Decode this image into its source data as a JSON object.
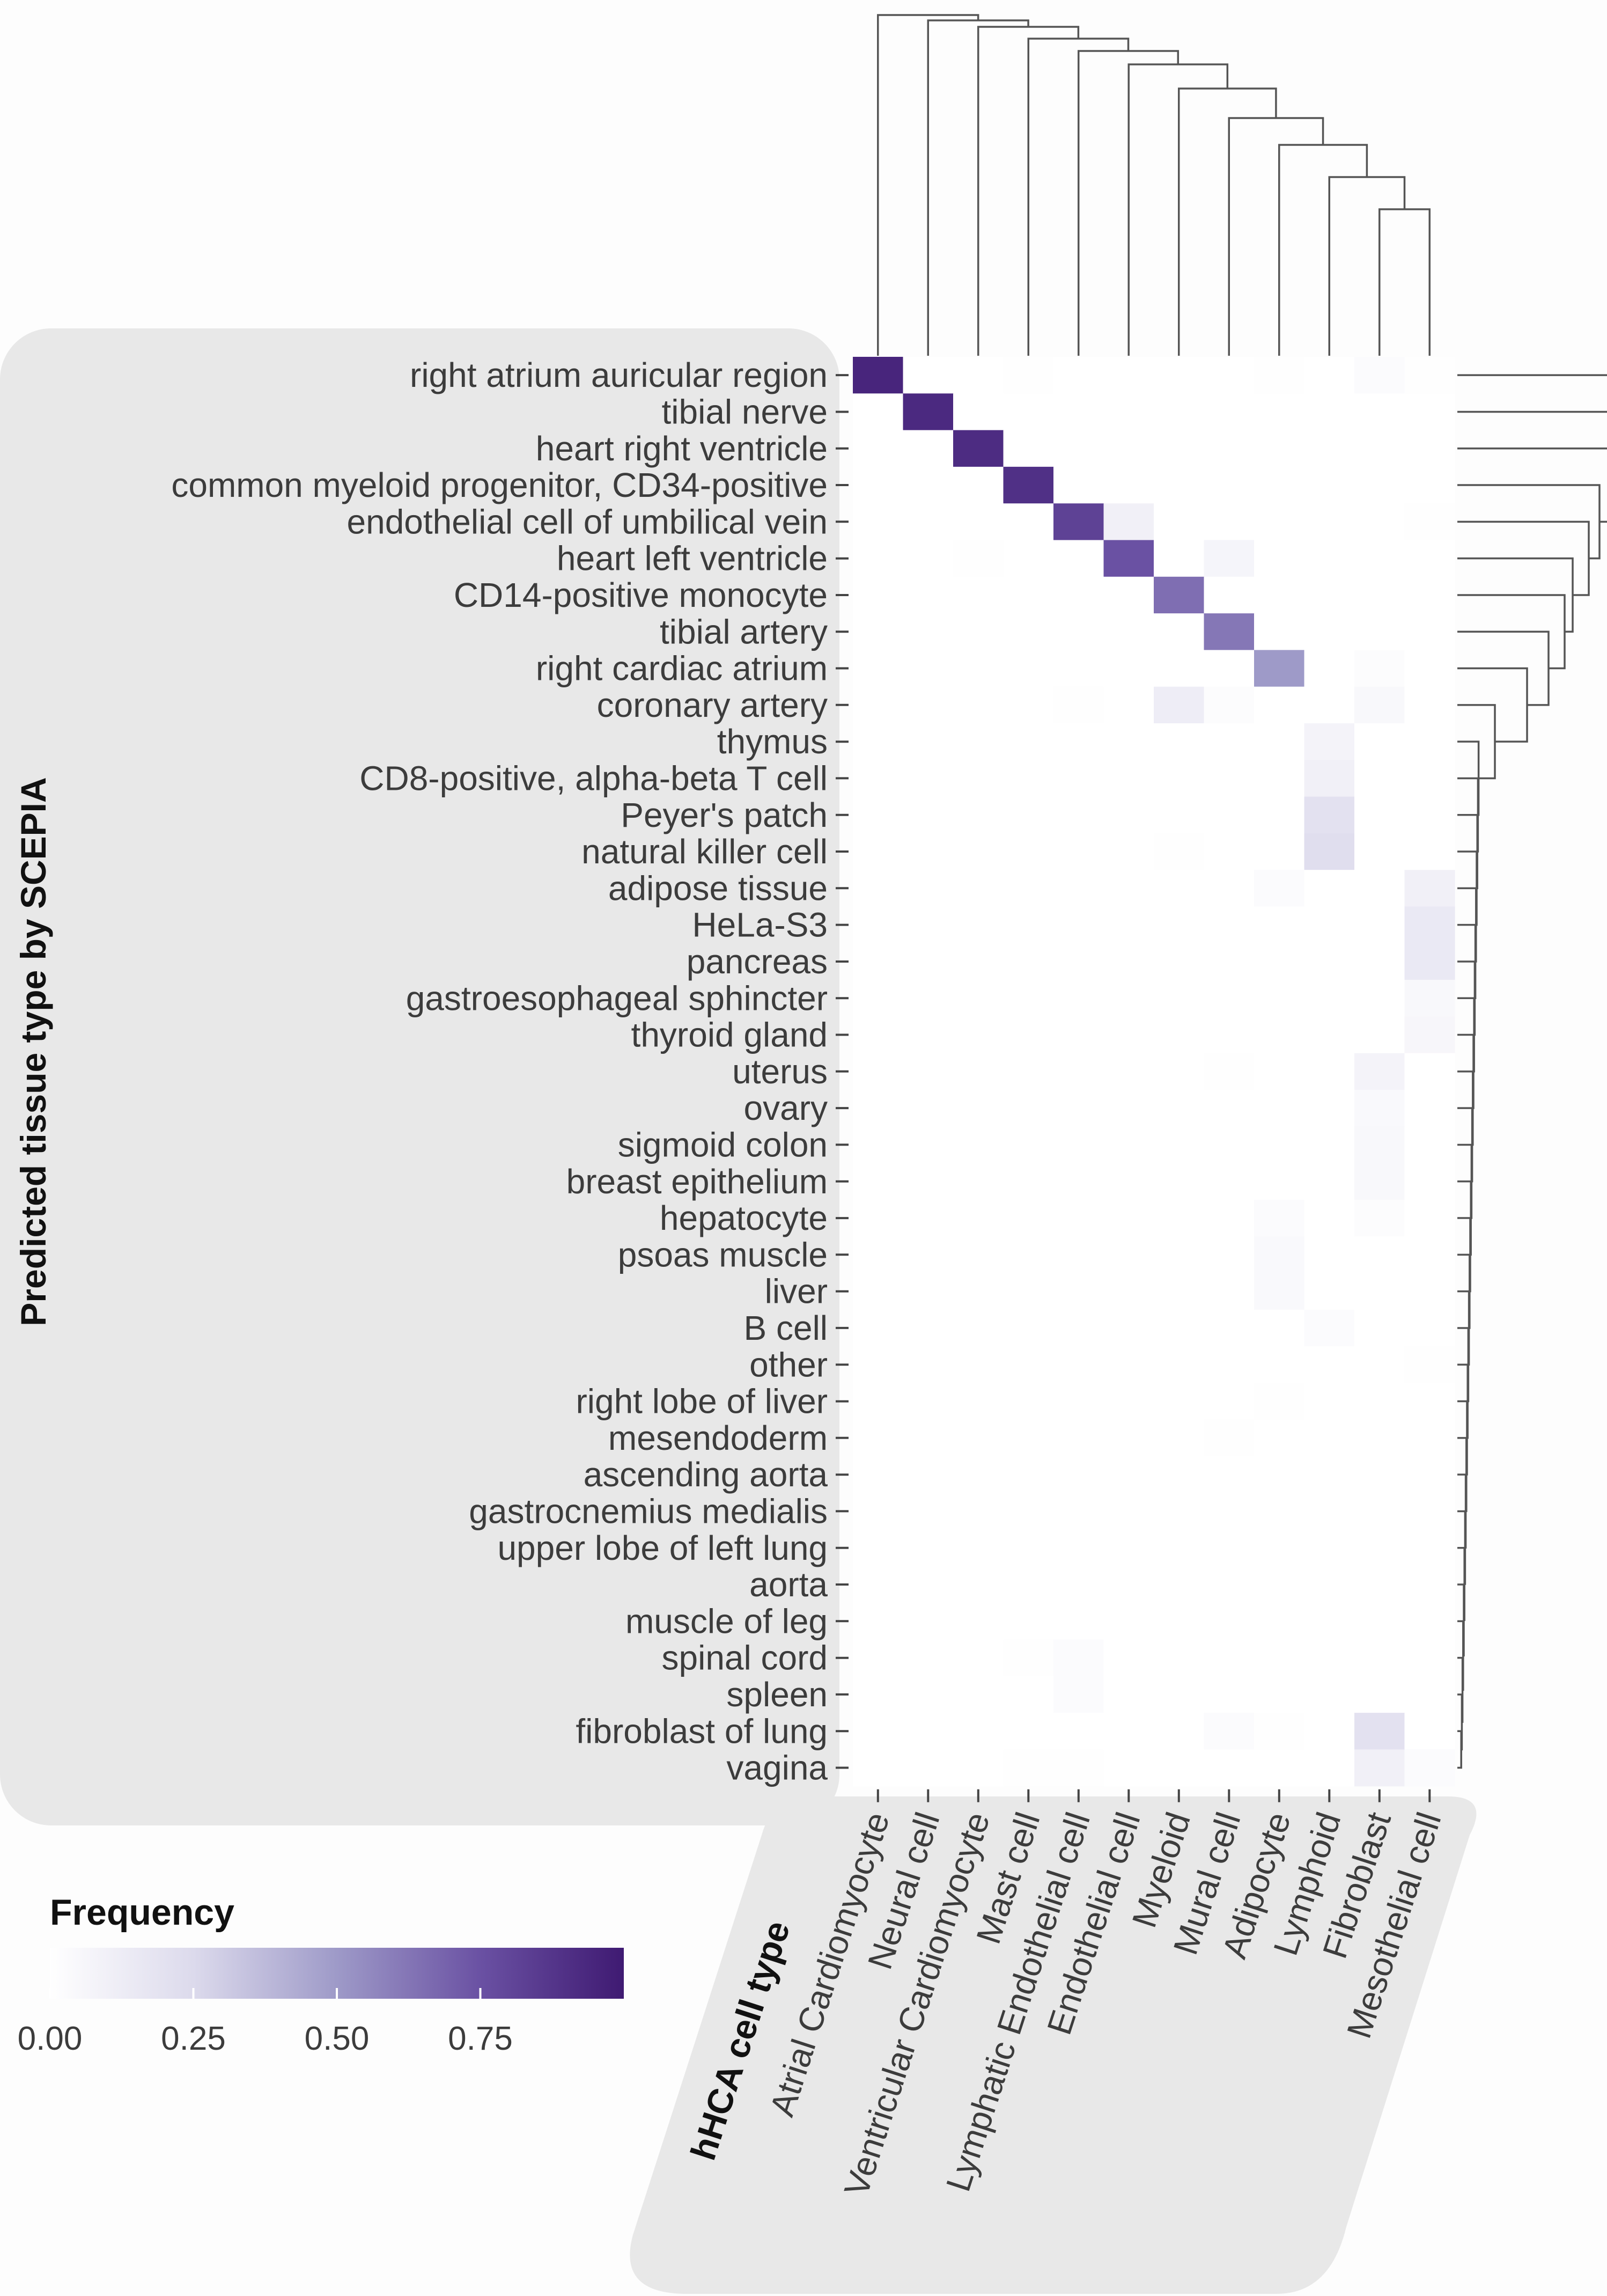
{
  "chart_data": {
    "type": "heatmap",
    "y_axis_title": "Predicted tissue type by SCEPIA",
    "x_axis_title": "hHCA cell type",
    "legend": {
      "title": "Frequency",
      "ticks": [
        "0.00",
        "0.25",
        "0.50",
        "0.75"
      ],
      "range": [
        0,
        1
      ]
    },
    "columns": [
      "Atrial Cardiomyocyte",
      "Neural cell",
      "Ventricular Cardiomyocyte",
      "Mast cell",
      "Lymphatic Endothelial cell",
      "Endothelial cell",
      "Myeloid",
      "Mural cell",
      "Adipocyte",
      "Lymphoid",
      "Fibroblast",
      "Mesothelial cell"
    ],
    "rows": [
      "right atrium auricular region",
      "tibial nerve",
      "heart right ventricle",
      "common myeloid progenitor, CD34-positive",
      "endothelial cell of umbilical vein",
      "heart left ventricle",
      "CD14-positive monocyte",
      "tibial artery",
      "right cardiac atrium",
      "coronary artery",
      "thymus",
      "CD8-positive, alpha-beta T cell",
      "Peyer's patch",
      "natural killer cell",
      "adipose tissue",
      "HeLa-S3",
      "pancreas",
      "gastroesophageal sphincter",
      "thyroid gland",
      "uterus",
      "ovary",
      "sigmoid colon",
      "breast epithelium",
      "hepatocyte",
      "psoas muscle",
      "liver",
      "B cell",
      "other",
      "right lobe of liver",
      "mesendoderm",
      "ascending aorta",
      "gastrocnemius medialis",
      "upper lobe of left lung",
      "aorta",
      "muscle of leg",
      "spinal cord",
      "spleen",
      "fibroblast of lung",
      "vagina"
    ],
    "values": [
      [
        0.95,
        0.0,
        0.0,
        0.01,
        0.0,
        0.0,
        0.0,
        0.0,
        0.01,
        0.0,
        0.03,
        0.01
      ],
      [
        0.0,
        0.93,
        0.0,
        0.0,
        0.0,
        0.0,
        0.0,
        0.0,
        0.0,
        0.0,
        0.0,
        0.0
      ],
      [
        0.0,
        0.0,
        0.92,
        0.0,
        0.0,
        0.0,
        0.0,
        0.0,
        0.0,
        0.0,
        0.0,
        0.0
      ],
      [
        0.0,
        0.0,
        0.0,
        0.9,
        0.0,
        0.0,
        0.0,
        0.0,
        0.0,
        0.0,
        0.0,
        0.0
      ],
      [
        0.0,
        0.0,
        0.0,
        0.0,
        0.82,
        0.1,
        0.0,
        0.0,
        0.0,
        0.0,
        0.0,
        0.01
      ],
      [
        0.0,
        0.0,
        0.01,
        0.0,
        0.0,
        0.75,
        0.0,
        0.07,
        0.0,
        0.0,
        0.0,
        0.0
      ],
      [
        0.0,
        0.0,
        0.0,
        0.0,
        0.0,
        0.0,
        0.65,
        0.0,
        0.0,
        0.0,
        0.0,
        0.0
      ],
      [
        0.0,
        0.0,
        0.0,
        0.0,
        0.0,
        0.0,
        0.0,
        0.62,
        0.0,
        0.0,
        0.0,
        0.0
      ],
      [
        0.0,
        0.0,
        0.0,
        0.0,
        0.0,
        0.0,
        0.0,
        0.0,
        0.5,
        0.0,
        0.02,
        0.0
      ],
      [
        0.0,
        0.0,
        0.0,
        0.0,
        0.01,
        0.0,
        0.12,
        0.02,
        0.0,
        0.0,
        0.05,
        0.0
      ],
      [
        0.0,
        0.0,
        0.0,
        0.0,
        0.0,
        0.0,
        0.0,
        0.0,
        0.0,
        0.08,
        0.0,
        0.0
      ],
      [
        0.0,
        0.0,
        0.0,
        0.0,
        0.0,
        0.0,
        0.0,
        0.0,
        0.0,
        0.1,
        0.0,
        0.0
      ],
      [
        0.0,
        0.0,
        0.0,
        0.0,
        0.0,
        0.0,
        0.0,
        0.0,
        0.0,
        0.2,
        0.0,
        0.0
      ],
      [
        0.0,
        0.0,
        0.0,
        0.0,
        0.0,
        0.0,
        0.01,
        0.0,
        0.0,
        0.22,
        0.0,
        0.0
      ],
      [
        0.0,
        0.0,
        0.0,
        0.0,
        0.0,
        0.0,
        0.0,
        0.0,
        0.03,
        0.0,
        0.0,
        0.1
      ],
      [
        0.0,
        0.0,
        0.0,
        0.0,
        0.0,
        0.0,
        0.0,
        0.0,
        0.0,
        0.0,
        0.0,
        0.15
      ],
      [
        0.0,
        0.0,
        0.0,
        0.0,
        0.0,
        0.0,
        0.0,
        0.0,
        0.0,
        0.0,
        0.0,
        0.15
      ],
      [
        0.0,
        0.0,
        0.0,
        0.0,
        0.0,
        0.0,
        0.0,
        0.0,
        0.0,
        0.0,
        0.0,
        0.05
      ],
      [
        0.0,
        0.0,
        0.0,
        0.0,
        0.0,
        0.0,
        0.0,
        0.0,
        0.0,
        0.0,
        0.0,
        0.06
      ],
      [
        0.0,
        0.0,
        0.0,
        0.0,
        0.0,
        0.0,
        0.0,
        0.01,
        0.0,
        0.0,
        0.08,
        0.0
      ],
      [
        0.0,
        0.0,
        0.0,
        0.0,
        0.0,
        0.0,
        0.0,
        0.0,
        0.0,
        0.0,
        0.04,
        0.0
      ],
      [
        0.0,
        0.0,
        0.0,
        0.0,
        0.0,
        0.0,
        0.0,
        0.0,
        0.0,
        0.0,
        0.05,
        0.0
      ],
      [
        0.0,
        0.0,
        0.0,
        0.0,
        0.0,
        0.0,
        0.0,
        0.0,
        0.0,
        0.0,
        0.05,
        0.0
      ],
      [
        0.0,
        0.0,
        0.0,
        0.0,
        0.0,
        0.0,
        0.0,
        0.0,
        0.03,
        0.0,
        0.02,
        0.0
      ],
      [
        0.0,
        0.0,
        0.0,
        0.0,
        0.0,
        0.0,
        0.0,
        0.0,
        0.04,
        0.0,
        0.0,
        0.0
      ],
      [
        0.0,
        0.0,
        0.0,
        0.0,
        0.0,
        0.0,
        0.0,
        0.0,
        0.04,
        0.0,
        0.0,
        0.0
      ],
      [
        0.0,
        0.0,
        0.0,
        0.0,
        0.0,
        0.0,
        0.0,
        0.0,
        0.0,
        0.03,
        0.0,
        0.0
      ],
      [
        0.0,
        0.0,
        0.0,
        0.0,
        0.0,
        0.0,
        0.0,
        0.0,
        0.0,
        0.0,
        0.0,
        0.01
      ],
      [
        0.0,
        0.0,
        0.0,
        0.0,
        0.0,
        0.0,
        0.0,
        0.0,
        0.01,
        0.0,
        0.0,
        0.0
      ],
      [
        0.0,
        0.0,
        0.0,
        0.0,
        0.0,
        0.0,
        0.0,
        0.01,
        0.0,
        0.0,
        0.0,
        0.0
      ],
      [
        0.0,
        0.0,
        0.0,
        0.0,
        0.0,
        0.0,
        0.0,
        0.0,
        0.0,
        0.0,
        0.0,
        0.0
      ],
      [
        0.0,
        0.0,
        0.0,
        0.0,
        0.0,
        0.0,
        0.0,
        0.0,
        0.0,
        0.0,
        0.0,
        0.0
      ],
      [
        0.0,
        0.0,
        0.0,
        0.0,
        0.0,
        0.0,
        0.0,
        0.0,
        0.0,
        0.0,
        0.0,
        0.0
      ],
      [
        0.0,
        0.0,
        0.0,
        0.0,
        0.0,
        0.0,
        0.0,
        0.0,
        0.0,
        0.0,
        0.0,
        0.0
      ],
      [
        0.0,
        0.0,
        0.0,
        0.0,
        0.0,
        0.0,
        0.0,
        0.0,
        0.0,
        0.0,
        0.0,
        0.0
      ],
      [
        0.0,
        0.0,
        0.0,
        0.01,
        0.03,
        0.0,
        0.0,
        0.0,
        0.0,
        0.0,
        0.0,
        0.0
      ],
      [
        0.0,
        0.0,
        0.0,
        0.0,
        0.03,
        0.0,
        0.0,
        0.0,
        0.0,
        0.0,
        0.0,
        0.0
      ],
      [
        0.0,
        0.0,
        0.0,
        0.0,
        0.0,
        0.0,
        0.0,
        0.03,
        0.01,
        0.0,
        0.2,
        0.0
      ],
      [
        0.0,
        0.0,
        0.0,
        0.01,
        0.01,
        0.0,
        0.0,
        0.0,
        0.0,
        0.0,
        0.1,
        0.03
      ]
    ],
    "colors": {
      "low": "#ffffff",
      "mid_low": "#dcdaec",
      "mid": "#9e9ac8",
      "mid_high": "#6a51a3",
      "high": "#3f1a72"
    },
    "dendrograms": {
      "columns": true,
      "rows": true
    }
  }
}
